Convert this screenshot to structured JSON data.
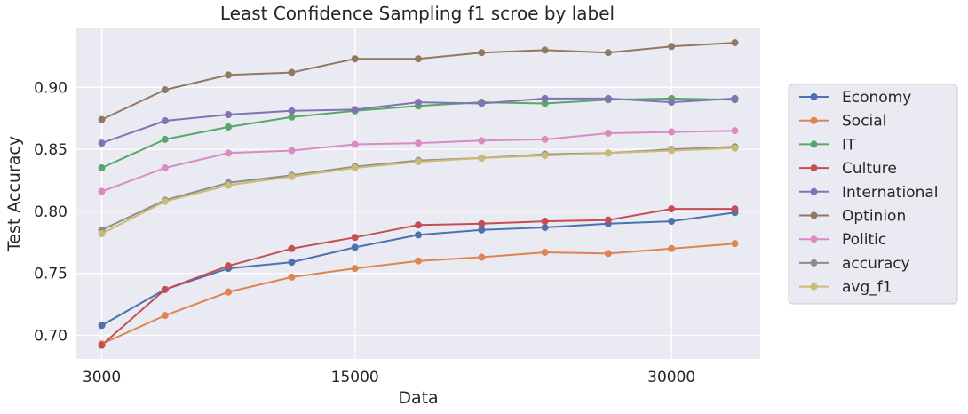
{
  "chart_data": {
    "type": "line",
    "title": "Least Confidence Sampling f1 scroe by label",
    "xlabel": "Data",
    "ylabel": "Test Accuracy",
    "x": [
      3000,
      6000,
      9000,
      12000,
      15000,
      18000,
      21000,
      24000,
      27000,
      30000,
      33000
    ],
    "x_ticks": [
      3000,
      15000,
      30000
    ],
    "x_tick_labels": [
      "3000",
      "15000",
      "30000"
    ],
    "xlim": [
      1800,
      34200
    ],
    "y_ticks": [
      0.7,
      0.75,
      0.8,
      0.85,
      0.9
    ],
    "y_tick_labels": [
      "0.70",
      "0.75",
      "0.80",
      "0.85",
      "0.90"
    ],
    "ylim": [
      0.681,
      0.9475
    ],
    "grid": true,
    "background": "#eaeaf2",
    "legend_position": "outside-right",
    "series": [
      {
        "name": "Economy",
        "color": "#4c72b0",
        "values": [
          0.708,
          0.737,
          0.754,
          0.759,
          0.771,
          0.781,
          0.785,
          0.787,
          0.79,
          0.792,
          0.799
        ]
      },
      {
        "name": "Social",
        "color": "#dd8452",
        "values": [
          0.693,
          0.716,
          0.735,
          0.747,
          0.754,
          0.76,
          0.763,
          0.767,
          0.766,
          0.77,
          0.774
        ]
      },
      {
        "name": "IT",
        "color": "#55a868",
        "values": [
          0.835,
          0.858,
          0.868,
          0.876,
          0.881,
          0.885,
          0.888,
          0.887,
          0.89,
          0.891,
          0.89
        ]
      },
      {
        "name": "Culture",
        "color": "#c44e52",
        "values": [
          0.692,
          0.737,
          0.756,
          0.77,
          0.779,
          0.789,
          0.79,
          0.792,
          0.793,
          0.802,
          0.802
        ]
      },
      {
        "name": "International",
        "color": "#8172b3",
        "values": [
          0.855,
          0.873,
          0.878,
          0.881,
          0.882,
          0.888,
          0.887,
          0.891,
          0.891,
          0.888,
          0.891
        ]
      },
      {
        "name": "Optinion",
        "color": "#937860",
        "values": [
          0.874,
          0.898,
          0.91,
          0.912,
          0.923,
          0.923,
          0.928,
          0.93,
          0.928,
          0.933,
          0.936
        ]
      },
      {
        "name": "Politic",
        "color": "#da8bc3",
        "values": [
          0.816,
          0.835,
          0.847,
          0.849,
          0.854,
          0.855,
          0.857,
          0.858,
          0.863,
          0.864,
          0.865
        ]
      },
      {
        "name": "accuracy",
        "color": "#8c8c8c",
        "values": [
          0.785,
          0.809,
          0.823,
          0.829,
          0.836,
          0.841,
          0.843,
          0.846,
          0.847,
          0.85,
          0.852
        ]
      },
      {
        "name": "avg_f1",
        "color": "#ccb974",
        "values": [
          0.782,
          0.808,
          0.821,
          0.828,
          0.835,
          0.84,
          0.843,
          0.845,
          0.847,
          0.849,
          0.851
        ]
      }
    ]
  }
}
